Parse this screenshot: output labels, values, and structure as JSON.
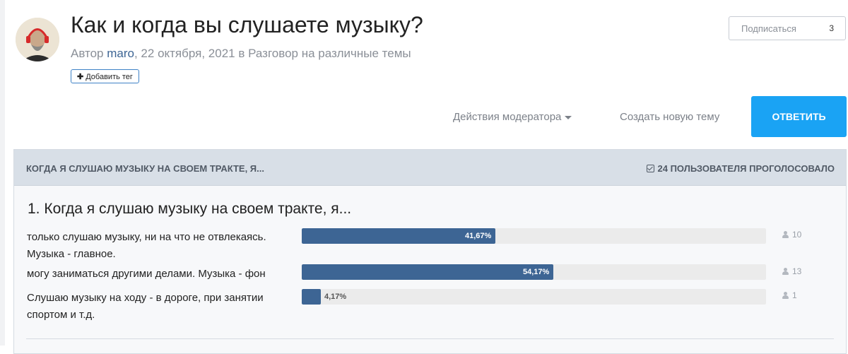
{
  "topic": {
    "title": "Как и когда вы слушаете музыку?",
    "byline_prefix": "Автор",
    "author": "maro",
    "date": ", 22 октября, 2021 в",
    "forum": "Разговор на различные темы",
    "add_tag_label": "Добавить тег",
    "follow": {
      "label": "Подписаться",
      "count": "3"
    }
  },
  "actions": {
    "moderator_label": "Действия модератора",
    "new_topic_label": "Создать новую тему",
    "reply_label": "ОТВЕТИТЬ"
  },
  "poll": {
    "header_title": "КОГДА Я СЛУШАЮ МУЗЫКУ НА СВОЕМ ТРАКТЕ, Я...",
    "voted_label": "24 ПОЛЬЗОВАТЕЛЯ ПРОГОЛОСОВАЛО",
    "question": "1. Когда я слушаю музыку на своем тракте, я...",
    "choices": [
      {
        "text": "только слушаю музыку, ни на что не отвлекаясь. Музыка - главное.",
        "percent_label": "41,67%",
        "percent": 41.67,
        "votes": "10"
      },
      {
        "text": "могу заниматься другими делами. Музыка - фон",
        "percent_label": "54,17%",
        "percent": 54.17,
        "votes": "13"
      },
      {
        "text": "Слушаю музыку на ходу - в дороге, при занятии спортом и т.д.",
        "percent_label": "4,17%",
        "percent": 4.17,
        "votes": "1"
      }
    ]
  },
  "colors": {
    "accent": "#1aa3f4",
    "bar": "#3d6594",
    "link": "#3d6594"
  }
}
